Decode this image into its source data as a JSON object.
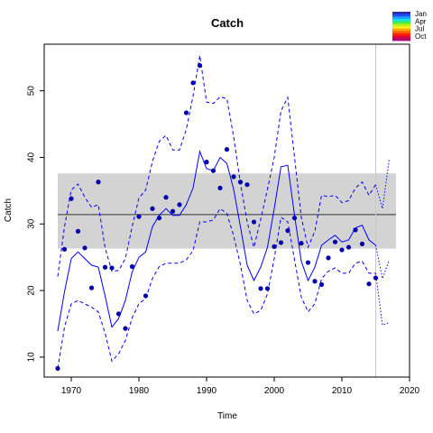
{
  "chart_data": {
    "type": "line",
    "title": "Catch",
    "xlabel": "Time",
    "ylabel": "Catch",
    "xlim": [
      1966,
      2020
    ],
    "ylim": [
      7,
      57
    ],
    "x_ticks": [
      1970,
      1980,
      1990,
      2000,
      2010,
      2020
    ],
    "y_ticks": [
      10,
      20,
      30,
      40,
      50
    ],
    "band": {
      "ymin": 26.3,
      "ymax": 37.6,
      "xmin": 1968,
      "xmax": 2018,
      "mean": 31.4,
      "color": "#d3d3d3"
    },
    "vline_x": 2015,
    "obs_color": "#0000aa",
    "line_color": "#0000ff",
    "observations": {
      "x": [
        1968,
        1969,
        1970,
        1971,
        1972,
        1973,
        1974,
        1975,
        1976,
        1977,
        1978,
        1979,
        1980,
        1981,
        1982,
        1983,
        1984,
        1985,
        1986,
        1987,
        1988,
        1989,
        1990,
        1991,
        1992,
        1993,
        1994,
        1995,
        1996,
        1997,
        1998,
        1999,
        2000,
        2001,
        2002,
        2003,
        2004,
        2005,
        2006,
        2007,
        2008,
        2009,
        2010,
        2011,
        2012,
        2013,
        2014,
        2015
      ],
      "y": [
        8.3,
        26.2,
        33.8,
        28.9,
        26.4,
        20.4,
        36.3,
        23.5,
        23.4,
        16.5,
        14.3,
        23.6,
        31.1,
        19.2,
        32.3,
        30.9,
        34.0,
        31.9,
        32.9,
        46.7,
        51.2,
        53.8,
        39.3,
        38.0,
        35.4,
        41.2,
        37.1,
        36.3,
        35.9,
        30.3,
        20.3,
        20.3,
        26.6,
        27.2,
        29.0,
        30.9,
        27.1,
        24.2,
        21.4,
        20.9,
        24.9,
        27.3,
        26.1,
        26.5,
        29.1,
        27.0,
        21.0,
        21.9
      ]
    },
    "series": [
      {
        "name": "fitted",
        "style": "solid",
        "x": [
          1968,
          1969,
          1970,
          1971,
          1972,
          1973,
          1974,
          1975,
          1976,
          1977,
          1978,
          1979,
          1980,
          1981,
          1982,
          1983,
          1984,
          1985,
          1986,
          1987,
          1988,
          1989,
          1990,
          1991,
          1992,
          1993,
          1994,
          1995,
          1996,
          1997,
          1998,
          1999,
          2000,
          2001,
          2002,
          2003,
          2004,
          2005,
          2006,
          2007,
          2008,
          2009,
          2010,
          2011,
          2012,
          2013,
          2014,
          2015
        ],
        "y": [
          13.9,
          19.8,
          24.8,
          25.8,
          24.8,
          23.8,
          23.5,
          19.2,
          14.5,
          15.8,
          18.5,
          22.8,
          25.0,
          25.8,
          29.6,
          31.3,
          32.3,
          31.3,
          31.3,
          32.9,
          35.4,
          40.9,
          38.3,
          38.0,
          40.0,
          39.1,
          35.2,
          29.6,
          23.8,
          21.5,
          23.5,
          26.5,
          32.3,
          38.6,
          38.8,
          31.3,
          24.4,
          21.5,
          23.5,
          26.8,
          27.6,
          28.3,
          27.3,
          27.6,
          29.4,
          29.8,
          27.6,
          26.8
        ]
      },
      {
        "name": "upper",
        "style": "dashed",
        "x": [
          1968,
          1969,
          1970,
          1971,
          1972,
          1973,
          1974,
          1975,
          1976,
          1977,
          1978,
          1979,
          1980,
          1981,
          1982,
          1983,
          1984,
          1985,
          1986,
          1987,
          1988,
          1989,
          1990,
          1991,
          1992,
          1993,
          1994,
          1995,
          1996,
          1997,
          1998,
          1999,
          2000,
          2001,
          2002,
          2003,
          2004,
          2005,
          2006,
          2007,
          2008,
          2009,
          2010,
          2011,
          2012,
          2013,
          2014,
          2015
        ],
        "y": [
          22.1,
          29.6,
          35.1,
          36.0,
          34.0,
          32.5,
          32.9,
          26.4,
          22.9,
          23.0,
          24.8,
          29.6,
          33.9,
          35.1,
          39.4,
          42.4,
          43.3,
          41.1,
          41.1,
          44.2,
          49.2,
          55.3,
          48.3,
          48.1,
          49.1,
          48.8,
          43.1,
          36.1,
          30.3,
          26.5,
          30.7,
          35.2,
          40.0,
          47.0,
          49.0,
          40.0,
          31.0,
          26.5,
          28.9,
          34.3,
          34.1,
          34.3,
          33.2,
          33.5,
          35.4,
          36.3,
          34.3,
          35.9
        ]
      },
      {
        "name": "lower",
        "style": "dashed",
        "x": [
          1968,
          1969,
          1970,
          1971,
          1972,
          1973,
          1974,
          1975,
          1976,
          1977,
          1978,
          1979,
          1980,
          1981,
          1982,
          1983,
          1984,
          1985,
          1986,
          1987,
          1988,
          1989,
          1990,
          1991,
          1992,
          1993,
          1994,
          1995,
          1996,
          1997,
          1998,
          1999,
          2000,
          2001,
          2002,
          2003,
          2004,
          2005,
          2006,
          2007,
          2008,
          2009,
          2010,
          2011,
          2012,
          2013,
          2014,
          2015
        ],
        "y": [
          8.3,
          14.5,
          18.0,
          18.5,
          18.0,
          17.5,
          16.8,
          13.6,
          9.4,
          10.5,
          12.5,
          15.9,
          18.0,
          18.8,
          21.8,
          23.6,
          24.1,
          24.1,
          24.1,
          24.6,
          26.0,
          30.3,
          30.3,
          30.6,
          32.3,
          31.6,
          28.2,
          23.9,
          18.5,
          16.5,
          17.0,
          19.5,
          24.8,
          31.0,
          30.3,
          24.6,
          19.0,
          16.8,
          18.0,
          21.8,
          22.9,
          23.4,
          22.6,
          22.6,
          24.1,
          24.4,
          22.6,
          22.6
        ]
      },
      {
        "name": "forecast-upper",
        "style": "dotted",
        "x": [
          2015,
          2016,
          2017
        ],
        "y": [
          35.9,
          32.3,
          39.8
        ]
      },
      {
        "name": "forecast-lower",
        "style": "dotted",
        "x": [
          2015,
          2016,
          2017
        ],
        "y": [
          22.6,
          14.8,
          15.2
        ]
      },
      {
        "name": "forecast-mid",
        "style": "dotted",
        "x": [
          2015,
          2016,
          2017
        ],
        "y": [
          26.8,
          21.8,
          24.6
        ]
      }
    ],
    "legend": {
      "placement": "top-right",
      "labels": [
        "Jan",
        "Apr",
        "Jul",
        "Oct"
      ],
      "colors": [
        "#2a2ab0",
        "#1f50ff",
        "#1fa0ff",
        "#19e0e0",
        "#3cf050",
        "#b8f018",
        "#f8f018",
        "#f8a800",
        "#f86000",
        "#ff2000",
        "#e0003c",
        "#b00070"
      ]
    }
  }
}
